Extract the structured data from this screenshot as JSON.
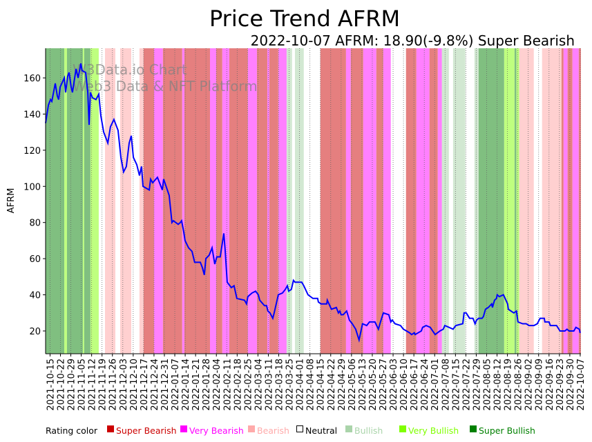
{
  "chart_data": {
    "type": "line",
    "title": "Price Trend AFRM",
    "subtitle": "2022-10-07 AFRM: 18.90(-9.8%) Super Bearish",
    "ylabel": "AFRM",
    "xlabel": "",
    "x_units": "days since 2021-10-12",
    "xlim": [
      0,
      360.5
    ],
    "ylim": [
      7.4,
      176.4
    ],
    "yticks": [
      20,
      40,
      60,
      80,
      100,
      120,
      140,
      160
    ],
    "xtick_first_day": 3,
    "xtick_step_days": 7,
    "xtick_labels": [
      "2021-10-15",
      "2021-10-22",
      "2021-10-29",
      "2021-11-05",
      "2021-11-12",
      "2021-11-19",
      "2021-11-26",
      "2021-12-03",
      "2021-12-10",
      "2021-12-17",
      "2021-12-24",
      "2021-12-31",
      "2022-01-07",
      "2022-01-14",
      "2022-01-21",
      "2022-01-28",
      "2022-02-04",
      "2022-02-11",
      "2022-02-18",
      "2022-02-25",
      "2022-03-04",
      "2022-03-11",
      "2022-03-18",
      "2022-03-25",
      "2022-04-01",
      "2022-04-08",
      "2022-04-15",
      "2022-04-22",
      "2022-04-29",
      "2022-05-06",
      "2022-05-13",
      "2022-05-20",
      "2022-05-27",
      "2022-06-03",
      "2022-06-10",
      "2022-06-17",
      "2022-06-24",
      "2022-07-01",
      "2022-07-08",
      "2022-07-15",
      "2022-07-22",
      "2022-07-29",
      "2022-08-05",
      "2022-08-12",
      "2022-08-19",
      "2022-08-26",
      "2022-09-02",
      "2022-09-09",
      "2022-09-16",
      "2022-09-23",
      "2022-09-30",
      "2022-10-07"
    ],
    "grid": "vertical dotted at x ticks",
    "series": [
      {
        "name": "AFRM",
        "color": "#0000ff",
        "points": [
          [
            0,
            135
          ],
          [
            1.9,
            145
          ],
          [
            3.3,
            148
          ],
          [
            4.2,
            147
          ],
          [
            6.5,
            157
          ],
          [
            7.9,
            150
          ],
          [
            8.8,
            148
          ],
          [
            9.8,
            155
          ],
          [
            12.6,
            160
          ],
          [
            13.5,
            152
          ],
          [
            14.9,
            161
          ],
          [
            15.8,
            163
          ],
          [
            17.2,
            155
          ],
          [
            18.1,
            152
          ],
          [
            20.5,
            165
          ],
          [
            21.9,
            160
          ],
          [
            23.7,
            168
          ],
          [
            24.6,
            164
          ],
          [
            27,
            163
          ],
          [
            28.4,
            152
          ],
          [
            29.3,
            134
          ],
          [
            30.2,
            152
          ],
          [
            31.6,
            149
          ],
          [
            33.9,
            148
          ],
          [
            35.8,
            151
          ],
          [
            37.2,
            139
          ],
          [
            39.1,
            130
          ],
          [
            41.9,
            124
          ],
          [
            43.7,
            133
          ],
          [
            46,
            137
          ],
          [
            48.8,
            131
          ],
          [
            50.7,
            116
          ],
          [
            52.5,
            108
          ],
          [
            54.4,
            111
          ],
          [
            56.3,
            124
          ],
          [
            57.7,
            128
          ],
          [
            59.1,
            116
          ],
          [
            61.4,
            112
          ],
          [
            63.2,
            106
          ],
          [
            64.6,
            111
          ],
          [
            65.6,
            100
          ],
          [
            69.8,
            98
          ],
          [
            70.7,
            104
          ],
          [
            72.1,
            102
          ],
          [
            75.3,
            105
          ],
          [
            78.6,
            98
          ],
          [
            79.5,
            104
          ],
          [
            83.2,
            95
          ],
          [
            85.1,
            80
          ],
          [
            86,
            81
          ],
          [
            89.3,
            79
          ],
          [
            90.7,
            80
          ],
          [
            91.6,
            81
          ],
          [
            93,
            75
          ],
          [
            93.9,
            70
          ],
          [
            96.3,
            66
          ],
          [
            98.6,
            64
          ],
          [
            100.4,
            58
          ],
          [
            104.2,
            58
          ],
          [
            105.6,
            55
          ],
          [
            106.9,
            51
          ],
          [
            107.9,
            60
          ],
          [
            110.2,
            62
          ],
          [
            112.1,
            66
          ],
          [
            113.9,
            57
          ],
          [
            115.3,
            61
          ],
          [
            117.6,
            61
          ],
          [
            120,
            74
          ],
          [
            120.9,
            65
          ],
          [
            122.3,
            47
          ],
          [
            125.1,
            44
          ],
          [
            126.9,
            45
          ],
          [
            128.8,
            38
          ],
          [
            133.9,
            37
          ],
          [
            135.3,
            35
          ],
          [
            136.2,
            39
          ],
          [
            139,
            41
          ],
          [
            141.4,
            42
          ],
          [
            143.2,
            40
          ],
          [
            144.2,
            37
          ],
          [
            147.4,
            34
          ],
          [
            148.8,
            34
          ],
          [
            149.7,
            31
          ],
          [
            151.1,
            30
          ],
          [
            153,
            27
          ],
          [
            153.9,
            30
          ],
          [
            156.7,
            40
          ],
          [
            159.5,
            41
          ],
          [
            161.4,
            43
          ],
          [
            162.8,
            45
          ],
          [
            163.7,
            42
          ],
          [
            165.5,
            43
          ],
          [
            166.9,
            48
          ],
          [
            167.9,
            47
          ],
          [
            172.5,
            47
          ],
          [
            173.9,
            45
          ],
          [
            176.7,
            40
          ],
          [
            180,
            38
          ],
          [
            183.2,
            38
          ],
          [
            183.7,
            36
          ],
          [
            185.5,
            35
          ],
          [
            189.3,
            35
          ],
          [
            189.7,
            37
          ],
          [
            192.5,
            32
          ],
          [
            195.8,
            33
          ],
          [
            197.2,
            30
          ],
          [
            198.1,
            31
          ],
          [
            199,
            29
          ],
          [
            200.4,
            29
          ],
          [
            202.7,
            31
          ],
          [
            204.6,
            26
          ],
          [
            206.5,
            24
          ],
          [
            208.8,
            21
          ],
          [
            211.1,
            15
          ],
          [
            213.4,
            24
          ],
          [
            216.2,
            23
          ],
          [
            218.1,
            25
          ],
          [
            221.8,
            25
          ],
          [
            224.1,
            21
          ],
          [
            225.5,
            25
          ],
          [
            227.4,
            30
          ],
          [
            231.1,
            29
          ],
          [
            232.5,
            25
          ],
          [
            233.4,
            26
          ],
          [
            235.3,
            24
          ],
          [
            239,
            23
          ],
          [
            240.9,
            21
          ],
          [
            245.1,
            19
          ],
          [
            246.5,
            18
          ],
          [
            248.3,
            19
          ],
          [
            248.8,
            18
          ],
          [
            253,
            20
          ],
          [
            253.9,
            22
          ],
          [
            256.2,
            23
          ],
          [
            259,
            22
          ],
          [
            262.3,
            18
          ],
          [
            265.5,
            20
          ],
          [
            267.8,
            21
          ],
          [
            268.8,
            23
          ],
          [
            271.6,
            22
          ],
          [
            274.4,
            21
          ],
          [
            276.2,
            23
          ],
          [
            280.9,
            24
          ],
          [
            281.8,
            30
          ],
          [
            283.2,
            30
          ],
          [
            285.5,
            27
          ],
          [
            287.8,
            27
          ],
          [
            289.2,
            24
          ],
          [
            290.2,
            26
          ],
          [
            291.6,
            27
          ],
          [
            293.9,
            27
          ],
          [
            294.8,
            28
          ],
          [
            296.2,
            32
          ],
          [
            298.1,
            33
          ],
          [
            300.4,
            35
          ],
          [
            300.9,
            33
          ],
          [
            302.3,
            37
          ],
          [
            303.6,
            38
          ],
          [
            304.1,
            40
          ],
          [
            305.5,
            39
          ],
          [
            308.3,
            40
          ],
          [
            311.1,
            35
          ],
          [
            311.6,
            32
          ],
          [
            315.3,
            30
          ],
          [
            317.1,
            31
          ],
          [
            318.1,
            25
          ],
          [
            321.3,
            24
          ],
          [
            323.6,
            24
          ],
          [
            325.5,
            23
          ],
          [
            328.8,
            23
          ],
          [
            331.1,
            24
          ],
          [
            333,
            27
          ],
          [
            335.8,
            27
          ],
          [
            336.2,
            25
          ],
          [
            339,
            25
          ],
          [
            339.9,
            23
          ],
          [
            344.1,
            23
          ],
          [
            346.4,
            20
          ],
          [
            349.7,
            20
          ],
          [
            351.1,
            21
          ],
          [
            352.5,
            20
          ],
          [
            355.7,
            20
          ],
          [
            357.1,
            22
          ],
          [
            359.4,
            21
          ],
          [
            360,
            18.9
          ]
        ]
      }
    ],
    "rating_colors": {
      "SBear": "#e57f7f",
      "VBear": "#ff80ff",
      "Bear": "#ffd0d0",
      "N": "#ffffff",
      "Bull": "#d2e8d2",
      "VBull": "#bfff7f",
      "SBull": "#80bf80"
    },
    "rating_bands": [
      [
        0,
        12.6,
        "SBull"
      ],
      [
        12.6,
        14.4,
        "VBull"
      ],
      [
        14.4,
        25.1,
        "SBull"
      ],
      [
        25.1,
        26,
        "VBull"
      ],
      [
        26,
        30.2,
        "SBull"
      ],
      [
        30.2,
        35.8,
        "VBull"
      ],
      [
        35.8,
        40,
        "N"
      ],
      [
        40,
        47,
        "Bear"
      ],
      [
        47,
        50.2,
        "N"
      ],
      [
        50.2,
        57.7,
        "Bear"
      ],
      [
        57.7,
        63.2,
        "N"
      ],
      [
        63.2,
        66,
        "Bear"
      ],
      [
        66,
        73,
        "SBear"
      ],
      [
        73,
        79,
        "VBear"
      ],
      [
        79,
        92,
        "SBear"
      ],
      [
        92,
        93.5,
        "VBear"
      ],
      [
        93.5,
        110.7,
        "SBear"
      ],
      [
        110.7,
        114.9,
        "VBear"
      ],
      [
        114.9,
        119,
        "SBear"
      ],
      [
        119,
        123.7,
        "VBear"
      ],
      [
        123.7,
        136.2,
        "SBear"
      ],
      [
        136.2,
        142.3,
        "VBear"
      ],
      [
        142.3,
        149.3,
        "SBear"
      ],
      [
        149.3,
        150.7,
        "VBear"
      ],
      [
        150.7,
        156.7,
        "SBear"
      ],
      [
        156.7,
        162.3,
        "VBear"
      ],
      [
        162.3,
        166,
        "Bull"
      ],
      [
        166,
        167.9,
        "N"
      ],
      [
        167.9,
        173.9,
        "Bull"
      ],
      [
        173.9,
        185,
        "N"
      ],
      [
        185,
        202.3,
        "SBear"
      ],
      [
        202.3,
        205.5,
        "VBear"
      ],
      [
        205.5,
        213.9,
        "SBear"
      ],
      [
        213.9,
        222.7,
        "VBear"
      ],
      [
        222.7,
        227.4,
        "SBear"
      ],
      [
        227.4,
        232.5,
        "VBear"
      ],
      [
        232.5,
        242.7,
        "N"
      ],
      [
        242.7,
        249.7,
        "SBear"
      ],
      [
        249.7,
        258.5,
        "VBear"
      ],
      [
        258.5,
        264.1,
        "SBear"
      ],
      [
        264.1,
        266.9,
        "VBear"
      ],
      [
        266.9,
        271.6,
        "Bull"
      ],
      [
        271.6,
        274.4,
        "N"
      ],
      [
        274.4,
        282.7,
        "Bull"
      ],
      [
        282.7,
        288.8,
        "N"
      ],
      [
        288.8,
        291.6,
        "Bull"
      ],
      [
        291.6,
        308.8,
        "SBull"
      ],
      [
        308.8,
        315.8,
        "VBull"
      ],
      [
        315.8,
        317.1,
        "SBull"
      ],
      [
        317.1,
        319,
        "VBull"
      ],
      [
        319,
        328.8,
        "Bear"
      ],
      [
        328.8,
        334.3,
        "N"
      ],
      [
        334.3,
        347.4,
        "Bear"
      ],
      [
        347.4,
        348.8,
        "SBear"
      ],
      [
        348.8,
        351.5,
        "VBear"
      ],
      [
        351.5,
        354.8,
        "SBear"
      ],
      [
        354.8,
        359,
        "VBear"
      ],
      [
        359,
        360.5,
        "SBear"
      ]
    ],
    "watermark": [
      "W3Data.io Chart",
      "Web3 Data & NFT Platform"
    ],
    "legend": {
      "title": "Rating color",
      "placement": "bottom",
      "items": [
        {
          "label": "Super Bearish",
          "color": "#cc0000"
        },
        {
          "label": "Very Bearish",
          "color": "#ff00ff"
        },
        {
          "label": "Bearish",
          "color": "#ffaaaa"
        },
        {
          "label": "Neutral",
          "color": "#000000"
        },
        {
          "label": "Bullish",
          "color": "#aad4aa"
        },
        {
          "label": "Very Bullish",
          "color": "#80ff00"
        },
        {
          "label": "Super Bullish",
          "color": "#008000"
        }
      ]
    }
  }
}
